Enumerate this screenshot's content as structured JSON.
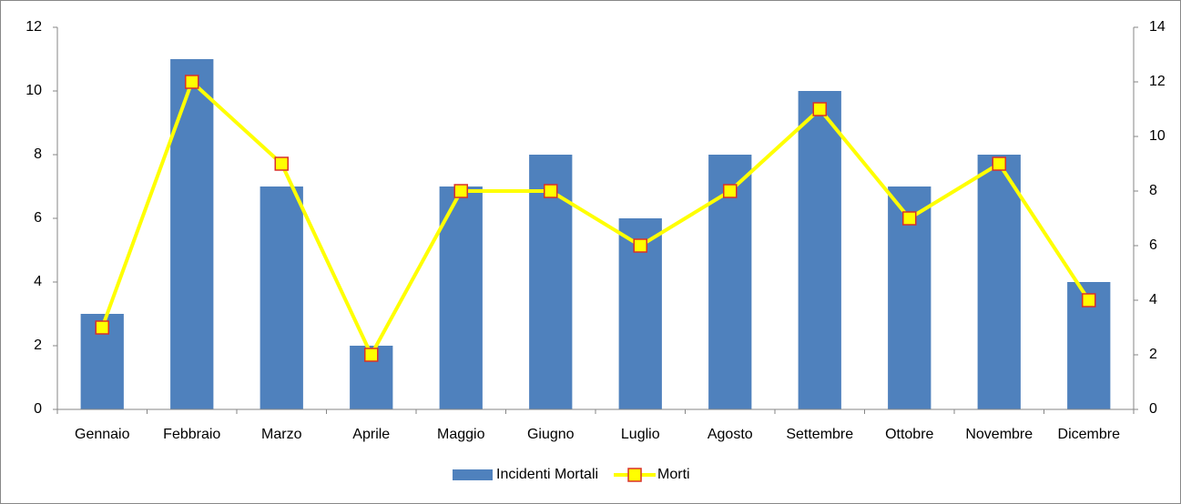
{
  "chart_data": {
    "type": "bar",
    "categories": [
      "Gennaio",
      "Febbraio",
      "Marzo",
      "Aprile",
      "Maggio",
      "Giugno",
      "Luglio",
      "Agosto",
      "Settembre",
      "Ottobre",
      "Novembre",
      "Dicembre"
    ],
    "series": [
      {
        "name": "Incidenti Mortali",
        "type": "bar",
        "color": "#4f81bd",
        "values": [
          3,
          11,
          7,
          2,
          7,
          8,
          6,
          8,
          10,
          7,
          8,
          4
        ]
      },
      {
        "name": "Morti",
        "type": "line",
        "axis": "y2",
        "color": "#ffff00",
        "marker_edge_color": "#d9302a",
        "values": [
          3,
          12,
          9,
          2,
          8,
          8,
          6,
          8,
          11,
          7,
          9,
          4
        ]
      }
    ],
    "ylim": [
      0,
      12
    ],
    "yticks": [
      0,
      2,
      4,
      6,
      8,
      10,
      12
    ],
    "y2lim": [
      0,
      14
    ],
    "y2ticks": [
      0,
      2,
      4,
      6,
      8,
      10,
      12,
      14
    ],
    "grid": false,
    "legend": "bottom"
  }
}
